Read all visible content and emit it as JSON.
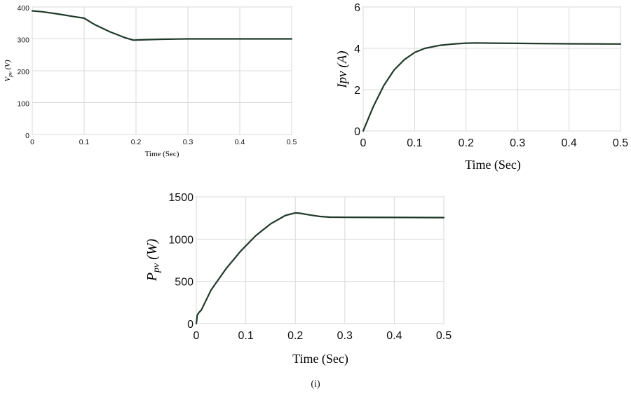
{
  "chart_data": [
    {
      "type": "line",
      "title": "",
      "xlabel": "Time (Sec)",
      "ylabel": "V",
      "ylabel_sub": "pv",
      "ylabel_unit": " (V)",
      "xlim": [
        0,
        0.5
      ],
      "ylim": [
        0,
        400
      ],
      "xticks": [
        0,
        0.1,
        0.2,
        0.3,
        0.4,
        0.5
      ],
      "xtick_labels": [
        "0",
        "0.1",
        "0.2",
        "0.3",
        "0.4",
        "0.5"
      ],
      "yticks": [
        0,
        100,
        200,
        300,
        400
      ],
      "ytick_labels": [
        "0",
        "100",
        "200",
        "300",
        "400"
      ],
      "grid": true,
      "series": [
        {
          "color": "#1f3a2a",
          "x": [
            0,
            0.02,
            0.05,
            0.08,
            0.1,
            0.12,
            0.15,
            0.18,
            0.195,
            0.21,
            0.25,
            0.3,
            0.4,
            0.5
          ],
          "y": [
            388,
            385,
            378,
            370,
            365,
            345,
            322,
            303,
            296,
            297,
            299,
            300,
            300,
            300
          ]
        }
      ]
    },
    {
      "type": "line",
      "title": "",
      "xlabel": "Time (Sec)",
      "ylabel": "Ipv (A)",
      "xlim": [
        0,
        0.5
      ],
      "ylim": [
        0,
        6
      ],
      "xticks": [
        0,
        0.1,
        0.2,
        0.3,
        0.4,
        0.5
      ],
      "xtick_labels": [
        "0",
        "0.1",
        "0.2",
        "0.3",
        "0.4",
        "0.5"
      ],
      "yticks": [
        0,
        2,
        4,
        6
      ],
      "ytick_labels": [
        "0",
        "2",
        "4",
        "6"
      ],
      "grid": true,
      "series": [
        {
          "color": "#1f3a2a",
          "x": [
            0,
            0.01,
            0.02,
            0.04,
            0.06,
            0.08,
            0.1,
            0.12,
            0.15,
            0.18,
            0.2,
            0.22,
            0.25,
            0.3,
            0.4,
            0.5
          ],
          "y": [
            0,
            0.6,
            1.2,
            2.2,
            2.95,
            3.45,
            3.8,
            4.0,
            4.15,
            4.22,
            4.25,
            4.26,
            4.25,
            4.24,
            4.22,
            4.21
          ]
        }
      ]
    },
    {
      "type": "line",
      "title": "",
      "xlabel": "Time (Sec)",
      "ylabel": "P",
      "ylabel_sub": "pv",
      "ylabel_unit": " (W)",
      "xlim": [
        0,
        0.5
      ],
      "ylim": [
        0,
        1500
      ],
      "xticks": [
        0,
        0.1,
        0.2,
        0.3,
        0.4,
        0.5
      ],
      "xtick_labels": [
        "0",
        "0.1",
        "0.2",
        "0.3",
        "0.4",
        "0.5"
      ],
      "yticks": [
        0,
        500,
        1000,
        1500
      ],
      "ytick_labels": [
        "0",
        "500",
        "1000",
        "1500"
      ],
      "grid": true,
      "series": [
        {
          "color": "#1f3a2a",
          "x": [
            0,
            0.002,
            0.005,
            0.01,
            0.03,
            0.06,
            0.09,
            0.12,
            0.15,
            0.18,
            0.2,
            0.21,
            0.23,
            0.25,
            0.27,
            0.3,
            0.4,
            0.5
          ],
          "y": [
            0,
            100,
            130,
            160,
            400,
            650,
            860,
            1040,
            1180,
            1280,
            1310,
            1305,
            1285,
            1268,
            1260,
            1258,
            1256,
            1255
          ]
        }
      ]
    }
  ],
  "caption": "(i)"
}
